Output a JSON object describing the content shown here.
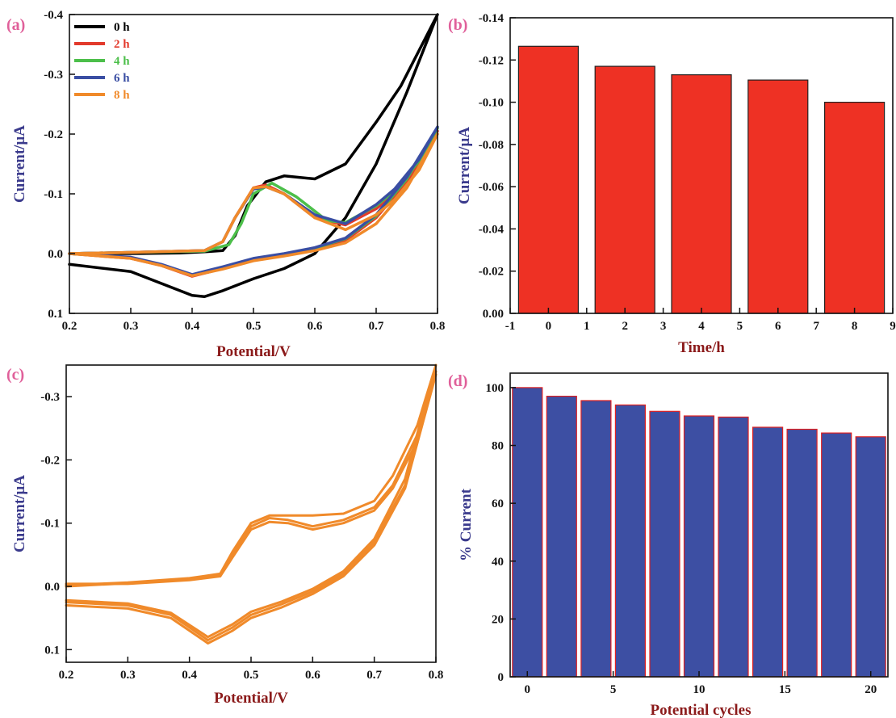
{
  "chart_data": [
    {
      "panel": "(a)",
      "type": "line",
      "xlabel": "Potential/V",
      "ylabel": "Current/μA",
      "xlim": [
        0.2,
        0.8
      ],
      "ylim": [
        0.1,
        -0.4
      ],
      "xticks": [
        "0.2",
        "0.3",
        "0.4",
        "0.5",
        "0.6",
        "0.7",
        "0.8"
      ],
      "yticks": [
        "0.1",
        "0.0",
        "-0.1",
        "-0.2",
        "-0.3",
        "-0.4"
      ],
      "legend_position": "top-left",
      "series": [
        {
          "name": "0 h",
          "color": "#000000",
          "x": [
            0.2,
            0.3,
            0.35,
            0.4,
            0.42,
            0.45,
            0.5,
            0.55,
            0.6,
            0.65,
            0.7,
            0.75,
            0.8,
            0.77,
            0.74,
            0.7,
            0.65,
            0.6,
            0.55,
            0.52,
            0.49,
            0.47,
            0.45,
            0.42,
            0.38,
            0.3,
            0.2
          ],
          "y": [
            0.018,
            0.03,
            0.05,
            0.07,
            0.072,
            0.062,
            0.042,
            0.025,
            0.0,
            -0.06,
            -0.15,
            -0.27,
            -0.4,
            -0.34,
            -0.28,
            -0.22,
            -0.15,
            -0.125,
            -0.13,
            -0.12,
            -0.08,
            -0.03,
            -0.005,
            -0.003,
            -0.001,
            0.0,
            0.0
          ]
        },
        {
          "name": "2 h",
          "color": "#e23a2c",
          "x": [
            0.2,
            0.3,
            0.35,
            0.4,
            0.45,
            0.5,
            0.55,
            0.6,
            0.65,
            0.7,
            0.75,
            0.8,
            0.77,
            0.73,
            0.7,
            0.65,
            0.6,
            0.55,
            0.52,
            0.5,
            0.47,
            0.45,
            0.42,
            0.3,
            0.2
          ],
          "y": [
            0.0,
            0.008,
            0.02,
            0.038,
            0.025,
            0.01,
            0.002,
            -0.008,
            -0.022,
            -0.06,
            -0.12,
            -0.205,
            -0.15,
            -0.1,
            -0.075,
            -0.048,
            -0.06,
            -0.1,
            -0.115,
            -0.11,
            -0.06,
            -0.02,
            -0.005,
            -0.002,
            0.0
          ]
        },
        {
          "name": "4 h",
          "color": "#4cbf4a",
          "x": [
            0.2,
            0.3,
            0.35,
            0.4,
            0.45,
            0.5,
            0.55,
            0.6,
            0.65,
            0.7,
            0.75,
            0.8,
            0.77,
            0.73,
            0.7,
            0.65,
            0.62,
            0.57,
            0.53,
            0.5,
            0.48,
            0.46,
            0.42,
            0.3,
            0.2
          ],
          "y": [
            0.0,
            0.007,
            0.019,
            0.036,
            0.024,
            0.01,
            0.001,
            -0.009,
            -0.025,
            -0.063,
            -0.125,
            -0.21,
            -0.155,
            -0.105,
            -0.08,
            -0.052,
            -0.055,
            -0.095,
            -0.118,
            -0.1,
            -0.05,
            -0.015,
            -0.004,
            -0.002,
            0.0
          ]
        },
        {
          "name": "6 h",
          "color": "#3a4ea3",
          "x": [
            0.2,
            0.3,
            0.35,
            0.4,
            0.45,
            0.5,
            0.55,
            0.6,
            0.65,
            0.7,
            0.75,
            0.8,
            0.77,
            0.73,
            0.7,
            0.65,
            0.6,
            0.55,
            0.52,
            0.5,
            0.47,
            0.45,
            0.42,
            0.3,
            0.2
          ],
          "y": [
            0.0,
            0.006,
            0.018,
            0.035,
            0.022,
            0.008,
            0.0,
            -0.01,
            -0.026,
            -0.065,
            -0.128,
            -0.212,
            -0.158,
            -0.108,
            -0.082,
            -0.05,
            -0.065,
            -0.1,
            -0.112,
            -0.108,
            -0.06,
            -0.02,
            -0.005,
            -0.002,
            0.0
          ]
        },
        {
          "name": "8 h",
          "color": "#f08a2a",
          "x": [
            0.2,
            0.3,
            0.35,
            0.4,
            0.45,
            0.5,
            0.55,
            0.6,
            0.65,
            0.7,
            0.75,
            0.8,
            0.77,
            0.73,
            0.7,
            0.65,
            0.6,
            0.55,
            0.52,
            0.5,
            0.47,
            0.45,
            0.42,
            0.3,
            0.2
          ],
          "y": [
            0.0,
            0.008,
            0.02,
            0.037,
            0.026,
            0.012,
            0.004,
            -0.005,
            -0.018,
            -0.05,
            -0.11,
            -0.2,
            -0.14,
            -0.09,
            -0.065,
            -0.04,
            -0.06,
            -0.1,
            -0.112,
            -0.11,
            -0.06,
            -0.02,
            -0.005,
            -0.002,
            0.0
          ]
        }
      ]
    },
    {
      "panel": "(b)",
      "type": "bar",
      "xlabel": "Time/h",
      "ylabel": "Current/μA",
      "xlim": [
        -1,
        9
      ],
      "ylim": [
        0.0,
        -0.14
      ],
      "xticks": [
        "-1",
        "0",
        "1",
        "2",
        "3",
        "4",
        "5",
        "6",
        "7",
        "8",
        "9"
      ],
      "yticks": [
        "0.00",
        "-0.02",
        "-0.04",
        "-0.06",
        "-0.08",
        "-0.10",
        "-0.12",
        "-0.14"
      ],
      "bar_color": "#ee3124",
      "x": [
        0,
        2,
        4,
        6,
        8
      ],
      "values": [
        -0.1265,
        -0.117,
        -0.113,
        -0.1105,
        -0.1
      ]
    },
    {
      "panel": "(c)",
      "type": "line",
      "xlabel": "Potential/V",
      "ylabel": "Current/μA",
      "xlim": [
        0.2,
        0.8
      ],
      "ylim": [
        0.12,
        -0.35
      ],
      "xticks": [
        "0.2",
        "0.3",
        "0.4",
        "0.5",
        "0.6",
        "0.7",
        "0.8"
      ],
      "yticks": [
        "0.1",
        "0.0",
        "-0.1",
        "-0.2",
        "-0.3"
      ],
      "series": [
        {
          "color": "#f08a2a",
          "x": [
            0.2,
            0.3,
            0.37,
            0.43,
            0.47,
            0.5,
            0.55,
            0.6,
            0.65,
            0.7,
            0.75,
            0.8,
            0.77,
            0.73,
            0.7,
            0.65,
            0.6,
            0.56,
            0.53,
            0.5,
            0.47,
            0.45,
            0.4,
            0.3,
            0.2
          ],
          "y": [
            0.025,
            0.03,
            0.045,
            0.085,
            0.065,
            0.045,
            0.028,
            0.008,
            -0.02,
            -0.07,
            -0.16,
            -0.34,
            -0.24,
            -0.16,
            -0.125,
            -0.105,
            -0.095,
            -0.105,
            -0.108,
            -0.095,
            -0.05,
            -0.018,
            -0.012,
            -0.005,
            0.0
          ]
        },
        {
          "color": "#f08a2a",
          "x": [
            0.2,
            0.3,
            0.37,
            0.43,
            0.47,
            0.5,
            0.55,
            0.6,
            0.65,
            0.7,
            0.75,
            0.8,
            0.77,
            0.73,
            0.7,
            0.65,
            0.6,
            0.56,
            0.53,
            0.5,
            0.47,
            0.45,
            0.4,
            0.3,
            0.2
          ],
          "y": [
            0.03,
            0.035,
            0.05,
            0.09,
            0.07,
            0.05,
            0.033,
            0.012,
            -0.016,
            -0.065,
            -0.155,
            -0.335,
            -0.23,
            -0.155,
            -0.12,
            -0.1,
            -0.09,
            -0.1,
            -0.102,
            -0.09,
            -0.046,
            -0.016,
            -0.01,
            -0.004,
            -0.004
          ]
        },
        {
          "color": "#f08a2a",
          "x": [
            0.2,
            0.3,
            0.37,
            0.43,
            0.47,
            0.5,
            0.55,
            0.6,
            0.65,
            0.7,
            0.75,
            0.8,
            0.77,
            0.73,
            0.7,
            0.65,
            0.6,
            0.56,
            0.53,
            0.5,
            0.47,
            0.45,
            0.4,
            0.3,
            0.2
          ],
          "y": [
            0.022,
            0.027,
            0.042,
            0.08,
            0.06,
            0.04,
            0.024,
            0.004,
            -0.024,
            -0.075,
            -0.17,
            -0.35,
            -0.255,
            -0.175,
            -0.135,
            -0.115,
            -0.112,
            -0.112,
            -0.112,
            -0.1,
            -0.055,
            -0.02,
            -0.013,
            -0.006,
            -0.002
          ]
        }
      ]
    },
    {
      "panel": "(d)",
      "type": "bar",
      "xlabel": "Potential cycles",
      "ylabel": "% Current",
      "xlim": [
        -1,
        21
      ],
      "ylim": [
        0,
        105
      ],
      "xticks": [
        "0",
        "5",
        "10",
        "15",
        "20"
      ],
      "yticks": [
        "0",
        "20",
        "40",
        "60",
        "80",
        "100"
      ],
      "bar_color": "#3d4fa3",
      "edge_color": "#e02020",
      "x": [
        0,
        2,
        4,
        6,
        8,
        10,
        12,
        14,
        16,
        18,
        20
      ],
      "values": [
        100,
        97,
        95.5,
        94,
        91.8,
        90.2,
        89.8,
        86.3,
        85.6,
        84.3,
        83.0
      ]
    }
  ]
}
